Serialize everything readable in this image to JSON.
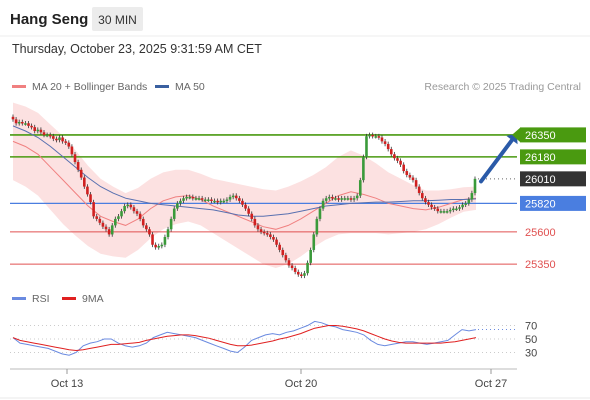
{
  "header": {
    "instrument": "Hang Seng",
    "interval": "30 MIN",
    "timestamp": "Thursday, October 23, 2025 9:31:59 AM CET"
  },
  "legend": {
    "ma20": "MA 20 + Bollinger Bands",
    "ma50": "MA 50",
    "copyright": "Research © 2025 Trading Central",
    "rsi": "RSI",
    "rsi_ma": "9MA"
  },
  "colors": {
    "candle_up": "#3a9a3a",
    "candle_down": "#d02020",
    "bollinger_fill": "#fcdcdc",
    "ma20": "#f08080",
    "ma50": "#5870b0",
    "resistance": "#4a9a10",
    "support": "#e05050",
    "pivot": "#4a7ee0",
    "arrow": "#2a5aa8",
    "rsi": "#6a8ae0",
    "rsi_ma": "#e02020"
  },
  "chart_data": [
    {
      "type": "candlestick",
      "title": "Hang Seng",
      "interval": "30 MIN",
      "x_ticks": [
        "Oct 13",
        "Oct 20",
        "Oct 27"
      ],
      "ylim": [
        25150,
        26620
      ],
      "levels": [
        {
          "value": 26350,
          "label": "26350",
          "kind": "resistance"
        },
        {
          "value": 26180,
          "label": "26180",
          "kind": "resistance"
        },
        {
          "value": 26010,
          "label": "26010",
          "kind": "last"
        },
        {
          "value": 25820,
          "label": "25820",
          "kind": "pivot"
        },
        {
          "value": 25600,
          "label": "25600",
          "kind": "support"
        },
        {
          "value": 25350,
          "label": "25350",
          "kind": "support"
        }
      ],
      "series": [
        {
          "name": "Price",
          "close": [
            26470,
            26440,
            26450,
            26440,
            26440,
            26420,
            26410,
            26380,
            26390,
            26370,
            26350,
            26350,
            26340,
            26320,
            26310,
            26330,
            26300,
            26290,
            26260,
            26200,
            26140,
            26080,
            26020,
            25950,
            25890,
            25830,
            25720,
            25700,
            25670,
            25640,
            25620,
            25580,
            25650,
            25700,
            25720,
            25760,
            25800,
            25810,
            25790,
            25760,
            25740,
            25700,
            25650,
            25620,
            25580,
            25500,
            25480,
            25490,
            25500,
            25560,
            25620,
            25700,
            25780,
            25820,
            25840,
            25860,
            25870,
            25870,
            25860,
            25860,
            25860,
            25850,
            25850,
            25850,
            25840,
            25840,
            25830,
            25840,
            25840,
            25850,
            25870,
            25880,
            25860,
            25840,
            25810,
            25780,
            25740,
            25700,
            25650,
            25620,
            25600,
            25590,
            25580,
            25560,
            25540,
            25500,
            25460,
            25420,
            25380,
            25340,
            25320,
            25290,
            25270,
            25260,
            25280,
            25360,
            25460,
            25580,
            25700,
            25780,
            25840,
            25860,
            25870,
            25860,
            25860,
            25850,
            25860,
            25860,
            25860,
            25850,
            25860,
            25880,
            26000,
            26180,
            26340,
            26350,
            26340,
            26340,
            26330,
            26300,
            26280,
            26240,
            26200,
            26170,
            26150,
            26120,
            26070,
            26040,
            26020,
            26000,
            25950,
            25900,
            25860,
            25830,
            25810,
            25790,
            25780,
            25760,
            25760,
            25760,
            25760,
            25770,
            25780,
            25780,
            25790,
            25810,
            25820,
            25850,
            25900,
            26010
          ]
        },
        {
          "name": "MA 20",
          "values": [
            26300,
            26260,
            26200,
            26100,
            26000,
            25900,
            25800,
            25720,
            25680,
            25650,
            25700,
            25780,
            25840,
            25870,
            25880,
            25850,
            25800,
            25760,
            25720,
            25680,
            25640,
            25620,
            25650,
            25700,
            25760,
            25820,
            25880,
            25910,
            25890,
            25860,
            25820,
            25800,
            25780,
            25770,
            25790,
            25820,
            25850,
            25860
          ]
        },
        {
          "name": "MA 50",
          "values": [
            26420,
            26380,
            26330,
            26260,
            26180,
            26100,
            26020,
            25950,
            25900,
            25860,
            25840,
            25820,
            25810,
            25800,
            25790,
            25780,
            25770,
            25750,
            25730,
            25720,
            25720,
            25730,
            25740,
            25760,
            25780,
            25800,
            25810,
            25820,
            25825,
            25830,
            25830,
            25835,
            25840,
            25840,
            25845,
            25850,
            25850,
            25855
          ]
        }
      ]
    },
    {
      "type": "line",
      "title": "RSI",
      "y_ticks": [
        70,
        50,
        30
      ],
      "ylim": [
        10,
        90
      ],
      "series": [
        {
          "name": "RSI",
          "values": [
            52,
            44,
            42,
            40,
            38,
            36,
            32,
            28,
            26,
            30,
            40,
            44,
            46,
            50,
            50,
            44,
            40,
            38,
            40,
            44,
            52,
            56,
            60,
            58,
            56,
            54,
            52,
            48,
            44,
            40,
            36,
            32,
            30,
            38,
            48,
            52,
            56,
            58,
            56,
            60,
            62,
            66,
            70,
            76,
            74,
            70,
            68,
            64,
            62,
            60,
            56,
            48,
            42,
            40,
            42,
            44,
            46,
            46,
            44,
            42,
            44,
            46,
            48,
            56,
            64,
            62,
            64
          ]
        },
        {
          "name": "9MA",
          "values": [
            52,
            48,
            46,
            44,
            42,
            40,
            38,
            36,
            34,
            33,
            34,
            36,
            38,
            40,
            42,
            42,
            43,
            44,
            45,
            48,
            50,
            52,
            54,
            55,
            56,
            56,
            55,
            53,
            51,
            48,
            45,
            42,
            40,
            40,
            41,
            43,
            45,
            47,
            50,
            52,
            55,
            58,
            62,
            66,
            68,
            70,
            70,
            69,
            67,
            65,
            62,
            58,
            54,
            50,
            47,
            45,
            44,
            44,
            44,
            44,
            44,
            44,
            45,
            46,
            48,
            50,
            52
          ]
        }
      ]
    }
  ]
}
